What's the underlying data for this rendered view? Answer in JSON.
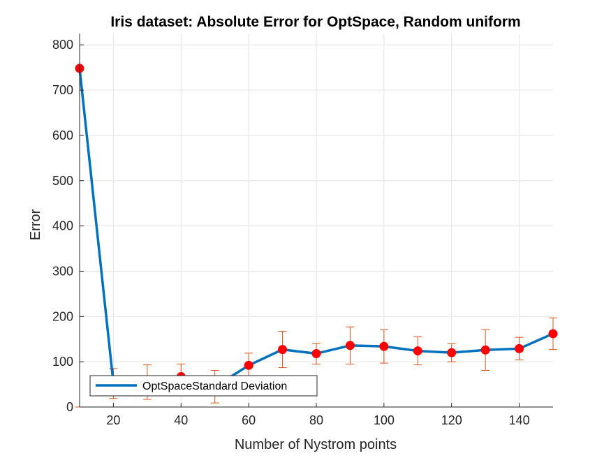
{
  "chart_data": {
    "type": "line",
    "title": "Iris dataset: Absolute Error for OptSpace, Random uniform",
    "xlabel": "Number of Nystrom points",
    "ylabel": "Error",
    "xlim": [
      10,
      150
    ],
    "ylim": [
      0,
      825
    ],
    "xticks": [
      20,
      40,
      60,
      80,
      100,
      120,
      140
    ],
    "yticks": [
      0,
      100,
      200,
      300,
      400,
      500,
      600,
      700,
      800
    ],
    "grid": true,
    "legend_position": "bottom-left",
    "legend_label": "OptSpaceStandard Deviation",
    "series": [
      {
        "x": [
          10,
          20,
          30,
          40,
          50,
          60,
          70,
          80,
          90,
          100,
          110,
          120,
          130,
          140,
          150
        ],
        "y": [
          748,
          52,
          55,
          67,
          45,
          92,
          127,
          118,
          136,
          134,
          124,
          120,
          126,
          129,
          162
        ],
        "error": [
          748,
          33,
          38,
          28,
          36,
          27,
          40,
          23,
          41,
          37,
          31,
          20,
          45,
          25,
          35
        ],
        "line_color": "#0072BD",
        "marker_color": "#FF0000",
        "errorbar_color": "#D95319"
      }
    ]
  }
}
